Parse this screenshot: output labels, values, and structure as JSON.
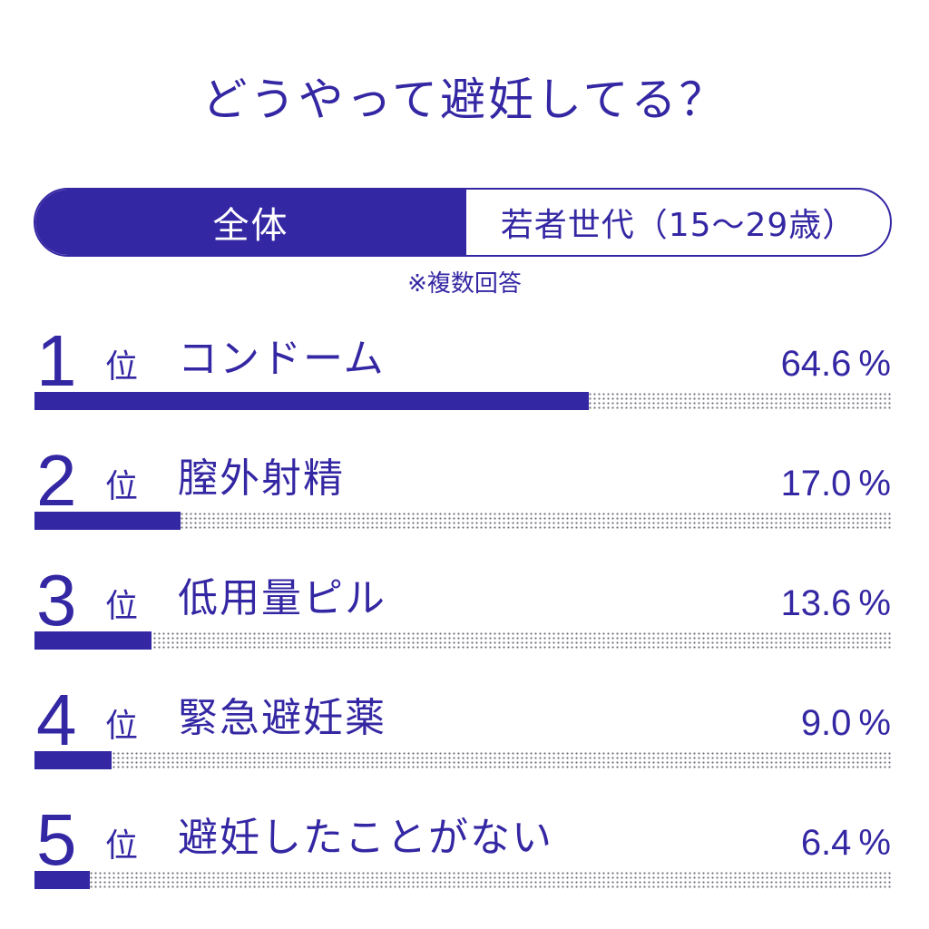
{
  "title": "どうやって避妊してる？",
  "tabs": {
    "all": "全体",
    "young": "若者世代（15～29歳）"
  },
  "note": "※複数回答",
  "colors": {
    "accent": "#3427a3",
    "dots": "#6f6f7a",
    "background": "#ffffff"
  },
  "rank_suffix": "位",
  "unit": "%",
  "rows": [
    {
      "rank": "1",
      "label": "コンドーム",
      "value_text": "64.6"
    },
    {
      "rank": "2",
      "label": "膣外射精",
      "value_text": "17.0"
    },
    {
      "rank": "3",
      "label": "低用量ピル",
      "value_text": "13.6"
    },
    {
      "rank": "4",
      "label": "緊急避妊薬",
      "value_text": "9.0"
    },
    {
      "rank": "5",
      "label": "避妊したことがない",
      "value_text": "6.4"
    }
  ],
  "chart_data": {
    "type": "bar",
    "orientation": "horizontal",
    "title": "どうやって避妊してる？",
    "categories": [
      "コンドーム",
      "膣外射精",
      "低用量ピル",
      "緊急避妊薬",
      "避妊したことがない"
    ],
    "values": [
      64.6,
      17.0,
      13.6,
      9.0,
      6.4
    ],
    "unit": "%",
    "xlim": [
      0,
      100
    ]
  }
}
